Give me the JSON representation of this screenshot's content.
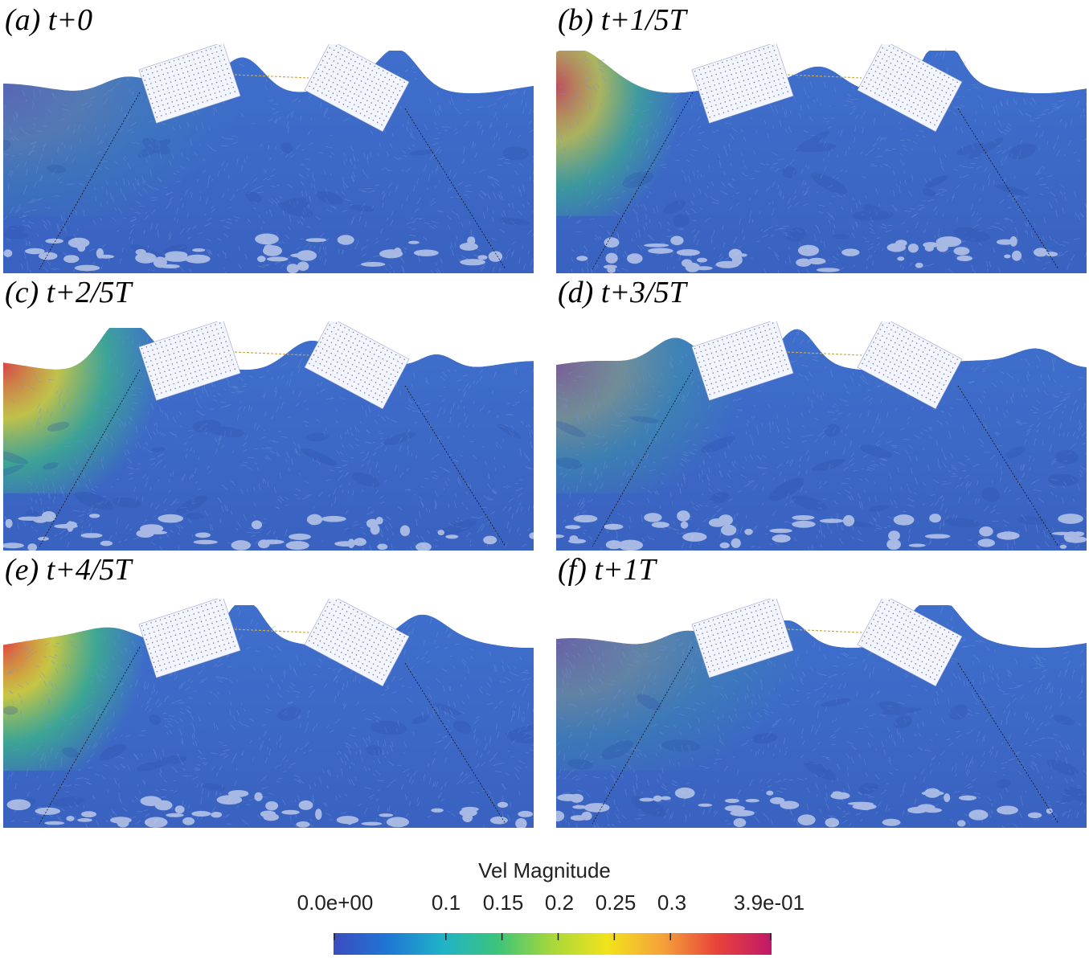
{
  "panels": [
    {
      "label": "(a) t+0"
    },
    {
      "label": "(b) t+1/5T"
    },
    {
      "label": "(c) t+2/5T"
    },
    {
      "label": "(d) t+3/5T"
    },
    {
      "label": "(e) t+4/5T"
    },
    {
      "label": "(f) t+1T"
    }
  ],
  "colorbar": {
    "title": "Vel Magnitude",
    "min_label": "0.0e+00",
    "max_label": "3.9e-01",
    "ticks": [
      "0.1",
      "0.15",
      "0.2",
      "0.25",
      "0.3"
    ],
    "min": 0.0,
    "max": 0.39,
    "tick_values": [
      0.1,
      0.15,
      0.2,
      0.25,
      0.3
    ],
    "colors": [
      "#3b4cc0",
      "#1f77d4",
      "#1fb3c8",
      "#3cc47a",
      "#a8d83a",
      "#f2e31b",
      "#f5a23a",
      "#e8433a",
      "#c0186a"
    ]
  }
}
